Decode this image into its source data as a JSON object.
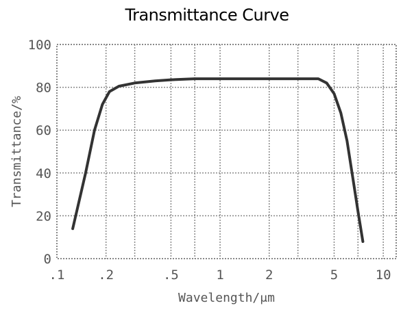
{
  "chart_data": {
    "type": "line",
    "title": "Transmittance Curve",
    "xlabel": "Wavelength/μm",
    "ylabel": "Transmittance/%",
    "x_scale": "log",
    "xlim": [
      0.1,
      12
    ],
    "ylim": [
      0,
      100
    ],
    "x_ticks": [
      {
        "value": 0.1,
        "label": ".1"
      },
      {
        "value": 0.2,
        "label": ".2"
      },
      {
        "value": 0.5,
        "label": ".5"
      },
      {
        "value": 1,
        "label": "1"
      },
      {
        "value": 2,
        "label": "2"
      },
      {
        "value": 5,
        "label": "5"
      },
      {
        "value": 10,
        "label": "10"
      }
    ],
    "x_gridlines": [
      0.1,
      0.2,
      0.3,
      0.5,
      0.7,
      1,
      2,
      3,
      5,
      7,
      10
    ],
    "y_ticks": [
      {
        "value": 0,
        "label": "0"
      },
      {
        "value": 20,
        "label": "20"
      },
      {
        "value": 40,
        "label": "40"
      },
      {
        "value": 60,
        "label": "60"
      },
      {
        "value": 80,
        "label": "80"
      },
      {
        "value": 100,
        "label": "100"
      }
    ],
    "grid": true,
    "grid_style": "dotted",
    "line_color": "#333333",
    "grid_color": "#888888",
    "series": [
      {
        "x": [
          0.125,
          0.15,
          0.17,
          0.19,
          0.21,
          0.24,
          0.3,
          0.4,
          0.5,
          0.7,
          1,
          2,
          3,
          4,
          4.5,
          5,
          5.5,
          6,
          6.5,
          7,
          7.5
        ],
        "y": [
          14,
          40,
          60,
          72,
          78,
          80.5,
          82,
          83,
          83.5,
          84,
          84,
          84,
          84,
          84,
          82,
          77,
          68,
          55,
          38,
          22,
          8
        ]
      }
    ]
  }
}
